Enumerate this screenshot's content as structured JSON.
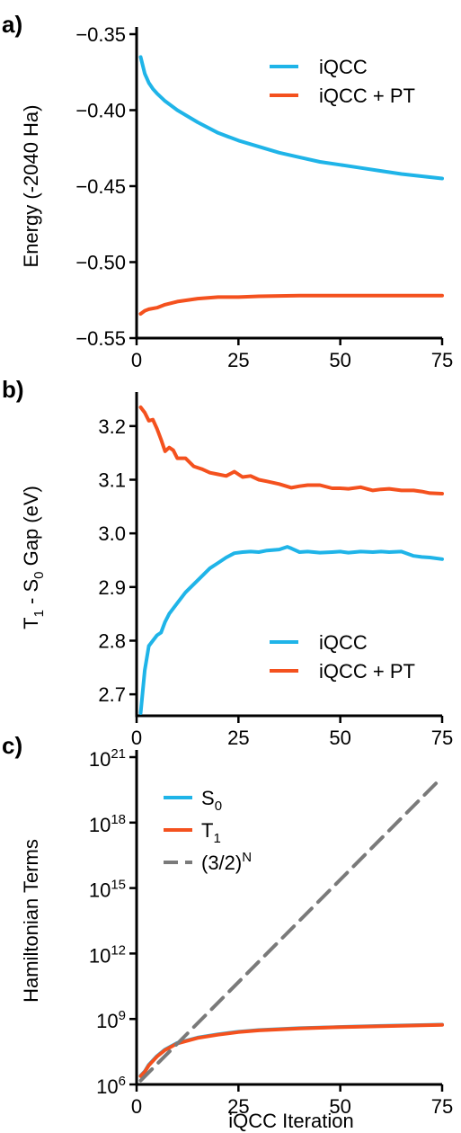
{
  "colors": {
    "iqcc": "#1fb4e8",
    "pt": "#f4511e",
    "powerlaw": "#7a7a7a",
    "axis": "#000000"
  },
  "chart_data": [
    {
      "panel_label": "a)",
      "type": "line",
      "ylabel": "Energy (-2040 Ha)",
      "xlim": [
        0,
        75
      ],
      "ylim": [
        -0.55,
        -0.35
      ],
      "xticks": [
        "0",
        "25",
        "50",
        "75"
      ],
      "yticks": [
        "−0.55",
        "−0.50",
        "−0.45",
        "−0.40",
        "−0.35"
      ],
      "legend": {
        "position": "top-right"
      },
      "series": [
        {
          "name": "iQCC",
          "color": "#1fb4e8",
          "x": [
            1,
            2,
            3,
            4,
            5,
            7,
            10,
            15,
            20,
            25,
            30,
            35,
            40,
            45,
            50,
            55,
            60,
            65,
            70,
            75
          ],
          "y": [
            -0.365,
            -0.376,
            -0.382,
            -0.386,
            -0.389,
            -0.394,
            -0.4,
            -0.408,
            -0.415,
            -0.42,
            -0.424,
            -0.428,
            -0.431,
            -0.434,
            -0.436,
            -0.438,
            -0.44,
            -0.442,
            -0.4435,
            -0.445
          ]
        },
        {
          "name": "iQCC + PT",
          "color": "#f4511e",
          "x": [
            1,
            2,
            3,
            5,
            7,
            10,
            15,
            20,
            25,
            30,
            40,
            50,
            60,
            75
          ],
          "y": [
            -0.534,
            -0.532,
            -0.531,
            -0.53,
            -0.528,
            -0.526,
            -0.524,
            -0.523,
            -0.523,
            -0.5225,
            -0.522,
            -0.522,
            -0.522,
            -0.522
          ]
        }
      ]
    },
    {
      "panel_label": "b)",
      "type": "line",
      "ylabel_parts": [
        "T",
        "1",
        " - S",
        "0",
        " Gap (eV)"
      ],
      "xlim": [
        0,
        75
      ],
      "ylim": [
        2.66,
        3.25
      ],
      "xticks": [
        "0",
        "25",
        "50",
        "75"
      ],
      "yticks": [
        "2.7",
        "2.8",
        "2.9",
        "3.0",
        "3.1",
        "3.2"
      ],
      "legend": {
        "position": "bottom-right"
      },
      "series": [
        {
          "name": "iQCC",
          "color": "#1fb4e8",
          "x": [
            1,
            2,
            3,
            4,
            5,
            6,
            7,
            8,
            10,
            12,
            14,
            16,
            18,
            20,
            22,
            24,
            26,
            28,
            30,
            32,
            35,
            37,
            38,
            40,
            42,
            45,
            48,
            50,
            52,
            55,
            58,
            60,
            62,
            65,
            68,
            70,
            72,
            75
          ],
          "y": [
            2.665,
            2.745,
            2.79,
            2.8,
            2.81,
            2.815,
            2.835,
            2.85,
            2.87,
            2.89,
            2.905,
            2.92,
            2.935,
            2.945,
            2.955,
            2.963,
            2.965,
            2.966,
            2.965,
            2.968,
            2.97,
            2.975,
            2.972,
            2.965,
            2.966,
            2.964,
            2.965,
            2.966,
            2.964,
            2.966,
            2.965,
            2.966,
            2.965,
            2.966,
            2.958,
            2.956,
            2.955,
            2.952
          ]
        },
        {
          "name": "iQCC + PT",
          "color": "#f4511e",
          "x": [
            1,
            2,
            3,
            4,
            5,
            6,
            7,
            8,
            9,
            10,
            12,
            14,
            16,
            18,
            20,
            22,
            24,
            26,
            28,
            30,
            32,
            35,
            38,
            40,
            42,
            45,
            48,
            50,
            52,
            55,
            58,
            60,
            62,
            65,
            68,
            70,
            72,
            75
          ],
          "y": [
            3.235,
            3.225,
            3.21,
            3.212,
            3.195,
            3.175,
            3.153,
            3.16,
            3.155,
            3.14,
            3.14,
            3.125,
            3.12,
            3.113,
            3.11,
            3.107,
            3.115,
            3.105,
            3.107,
            3.1,
            3.097,
            3.092,
            3.085,
            3.088,
            3.09,
            3.09,
            3.084,
            3.084,
            3.083,
            3.086,
            3.08,
            3.082,
            3.083,
            3.08,
            3.08,
            3.078,
            3.075,
            3.074
          ]
        }
      ]
    },
    {
      "panel_label": "c)",
      "type": "line",
      "xlabel": "iQCC Iteration",
      "ylabel": "Hamiltonian Terms",
      "yscale": "log",
      "xlim": [
        0,
        75
      ],
      "ylim": [
        1000000,
        1e+21
      ],
      "xticks": [
        "0",
        "25",
        "50",
        "75"
      ],
      "ytick_labels": [
        {
          "base": "10",
          "exp": "6"
        },
        {
          "base": "10",
          "exp": "9"
        },
        {
          "base": "10",
          "exp": "12"
        },
        {
          "base": "10",
          "exp": "15"
        },
        {
          "base": "10",
          "exp": "18"
        },
        {
          "base": "10",
          "exp": "21"
        }
      ],
      "legend": {
        "position": "top-left"
      },
      "series": [
        {
          "name_parts": [
            "S",
            "0"
          ],
          "color": "#1fb4e8",
          "x": [
            1,
            2,
            3,
            5,
            7,
            10,
            15,
            20,
            25,
            30,
            40,
            50,
            60,
            75
          ],
          "y": [
            2500000.0,
            4000000.0,
            8000000.0,
            20000000.0,
            40000000.0,
            80000000.0,
            140000000.0,
            200000000.0,
            260000000.0,
            310000000.0,
            380000000.0,
            430000000.0,
            480000000.0,
            550000000.0
          ]
        },
        {
          "name_parts": [
            "T",
            "1"
          ],
          "color": "#f4511e",
          "x": [
            1,
            2,
            3,
            5,
            7,
            10,
            15,
            20,
            25,
            30,
            40,
            50,
            60,
            75
          ],
          "y": [
            2400000.0,
            3800000.0,
            7500000.0,
            19000000.0,
            38000000.0,
            76000000.0,
            135000000.0,
            190000000.0,
            250000000.0,
            300000000.0,
            370000000.0,
            420000000.0,
            470000000.0,
            540000000.0
          ]
        },
        {
          "name_parts": [
            "(3/2)",
            "N"
          ],
          "color": "#7a7a7a",
          "dashed": true,
          "x": [
            1,
            75
          ],
          "y": [
            1500000.0,
            1.2e+20
          ]
        }
      ]
    }
  ]
}
